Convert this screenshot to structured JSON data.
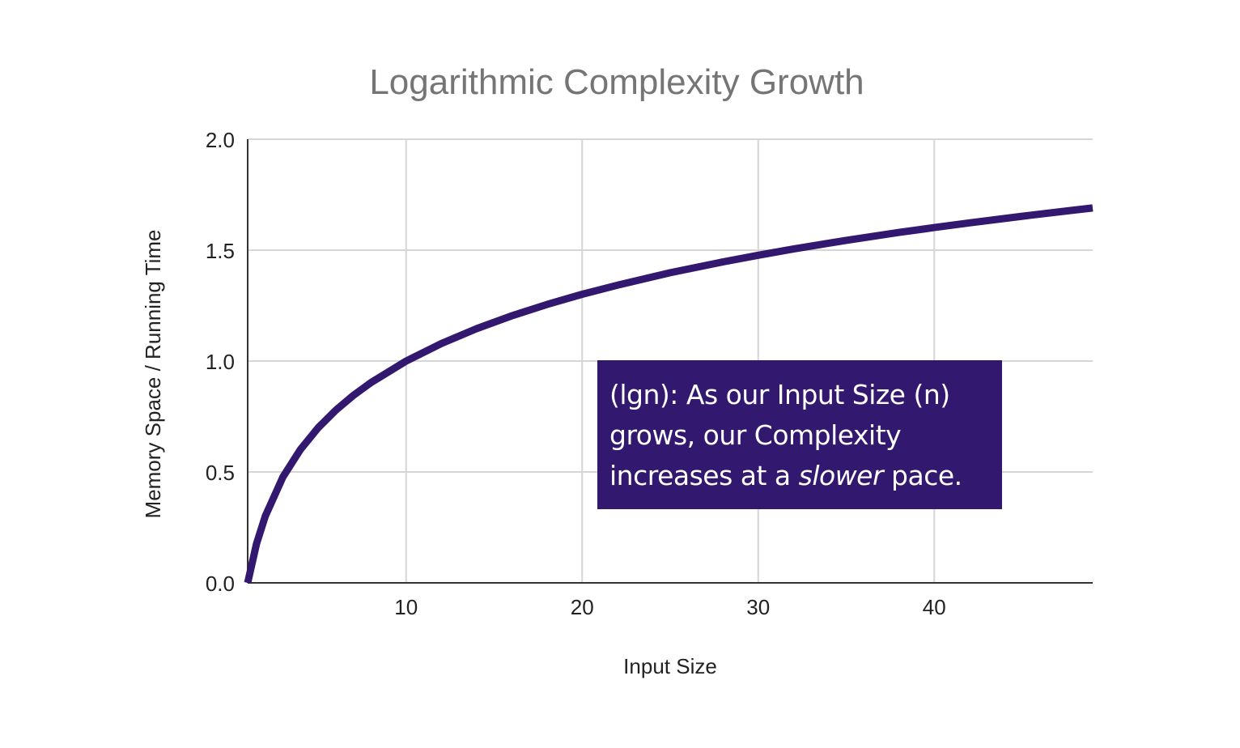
{
  "chart_data": {
    "type": "line",
    "title": "Logarithmic Complexity Growth",
    "xlabel": "Input Size",
    "ylabel": "Memory Space / Running Time",
    "xlim": [
      1,
      49
    ],
    "ylim": [
      0,
      2
    ],
    "x_ticks": [
      10,
      20,
      30,
      40
    ],
    "x_tick_labels": [
      "10",
      "20",
      "30",
      "40"
    ],
    "y_ticks": [
      0,
      0.5,
      1,
      1.5,
      2
    ],
    "y_tick_labels": [
      "0.0",
      "0.5",
      "1.0",
      "1.5",
      "2.0"
    ],
    "grid": true,
    "series": [
      {
        "color": "#33186f",
        "x": [
          1,
          1.5,
          2,
          3,
          4,
          5,
          6,
          7,
          8,
          10,
          12,
          14,
          16,
          18,
          20,
          22,
          25,
          28,
          30,
          32,
          35,
          38,
          40,
          42,
          45,
          48,
          49
        ],
        "y": [
          0,
          0.176,
          0.301,
          0.477,
          0.602,
          0.699,
          0.778,
          0.845,
          0.903,
          1.0,
          1.079,
          1.146,
          1.204,
          1.255,
          1.301,
          1.342,
          1.398,
          1.447,
          1.477,
          1.505,
          1.544,
          1.58,
          1.602,
          1.623,
          1.653,
          1.681,
          1.69
        ]
      }
    ]
  },
  "annotation": {
    "line1": "(lgn):  As our Input Size (n)",
    "line2": "grows, our Complexity",
    "line3_pre": "increases at a ",
    "line3_em": "slower",
    "line3_post": " pace.",
    "background": "#33186f"
  }
}
